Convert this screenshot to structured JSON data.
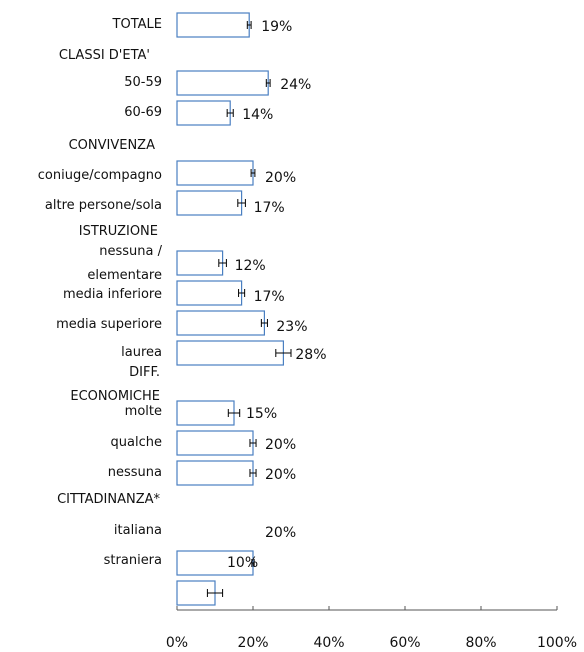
{
  "chart_data": {
    "type": "bar",
    "orientation": "horizontal",
    "categories": [
      "TOTALE",
      "50-59",
      "60-69",
      "coniuge/compagno",
      "altre persone/sola",
      "nessuna /\nelementare",
      "media inferiore",
      "media superiore",
      "laurea",
      "molte",
      "qualche",
      "nessuna",
      "italiana",
      "straniera"
    ],
    "values": [
      19,
      24,
      14,
      20,
      17,
      12,
      17,
      23,
      28,
      15,
      20,
      20,
      20,
      10
    ],
    "value_labels": [
      "19%",
      "24%",
      "14%",
      "20%",
      "17%",
      "12%",
      "17%",
      "23%",
      "28%",
      "15%",
      "20%",
      "20%",
      "20%",
      "10%"
    ],
    "errors": [
      0.5,
      0.5,
      0.8,
      0.5,
      1,
      1,
      0.8,
      0.8,
      2,
      1.5,
      0.8,
      0.8,
      0.3,
      2
    ],
    "groups": [
      "CLASSI D'ETA'",
      "CONVIVENZA",
      "ISTRUZIONE",
      "DIFF.\nECONOMICHE",
      "CITTADINANZA*"
    ],
    "color": "#4a7fc1",
    "xlim": [
      0,
      100
    ],
    "xticks": [
      {
        "value": 0,
        "label": "0%"
      },
      {
        "value": 20,
        "label": "20%"
      },
      {
        "value": 40,
        "label": "40%"
      },
      {
        "value": 60,
        "label": "60%"
      },
      {
        "value": 80,
        "label": "80%"
      },
      {
        "value": 100,
        "label": "100%"
      }
    ]
  }
}
